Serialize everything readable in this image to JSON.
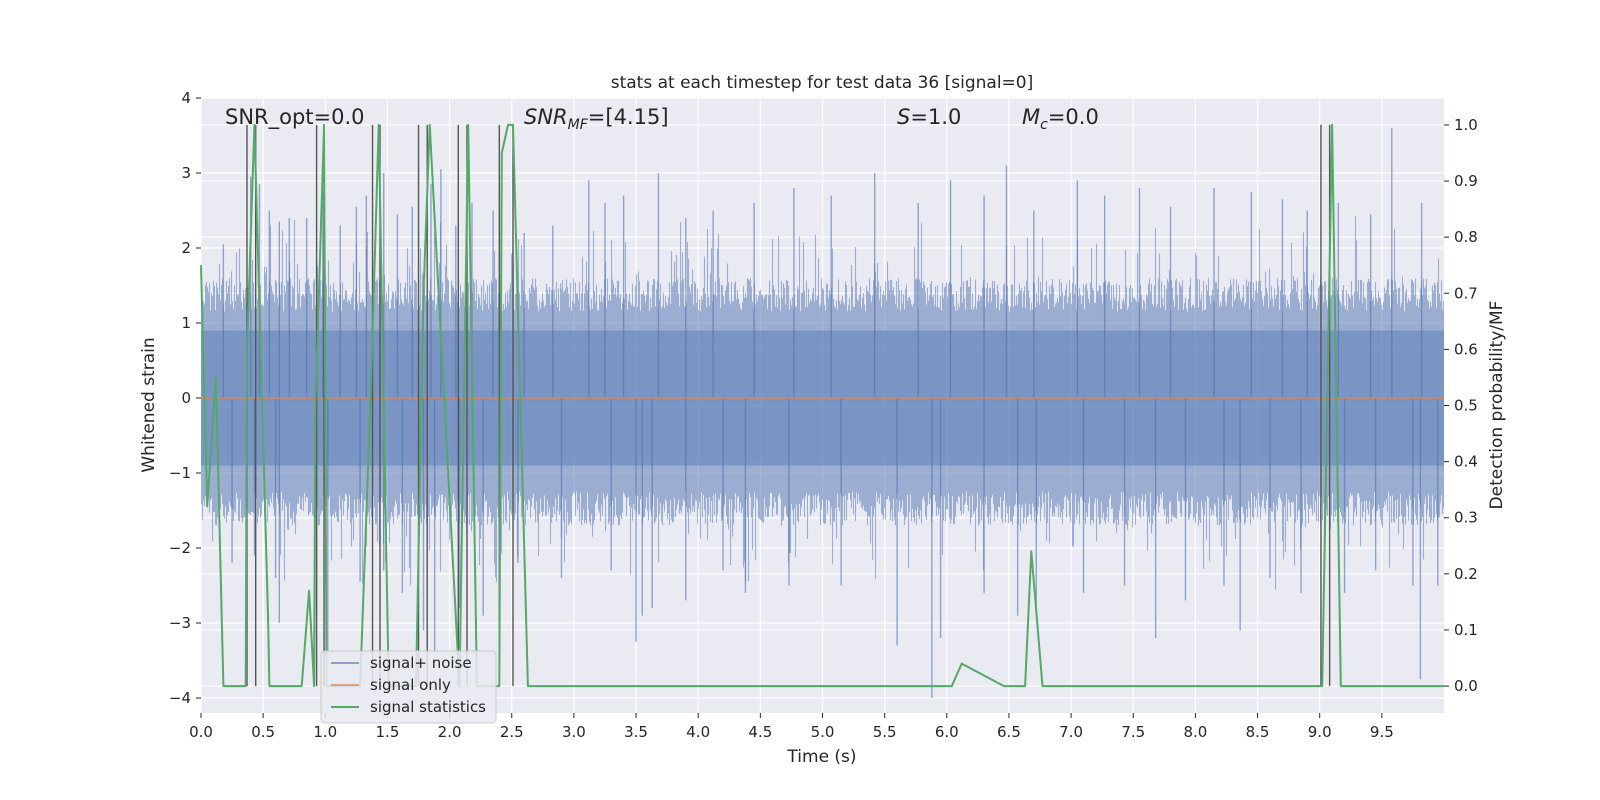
{
  "chart_data": {
    "type": "line",
    "title": "stats at each timestep for test data 36 [signal=0]",
    "xlabel": "Time (s)",
    "ylabel_left": "Whitened strain",
    "ylabel_right": "Detection probability/MF",
    "xlim": [
      0,
      10
    ],
    "ylim_left": [
      -4.2,
      4
    ],
    "ylim_right": [
      -0.048,
      1.048
    ],
    "x_ticks": [
      0.0,
      0.5,
      1.0,
      1.5,
      2.0,
      2.5,
      3.0,
      3.5,
      4.0,
      4.5,
      5.0,
      5.5,
      6.0,
      6.5,
      7.0,
      7.5,
      8.0,
      8.5,
      9.0,
      9.5
    ],
    "x_tick_labels": [
      "0.0",
      "0.5",
      "1.0",
      "1.5",
      "2.0",
      "2.5",
      "3.0",
      "3.5",
      "4.0",
      "4.5",
      "5.0",
      "5.5",
      "6.0",
      "6.5",
      "7.0",
      "7.5",
      "8.0",
      "8.5",
      "9.0",
      "9.5"
    ],
    "y_ticks_left": [
      4,
      3,
      2,
      1,
      0,
      -1,
      -2,
      -3,
      -4
    ],
    "y_tick_labels_left": [
      "4",
      "3",
      "2",
      "1",
      "0",
      "−1",
      "−2",
      "−3",
      "−4"
    ],
    "y_ticks_right": [
      1.0,
      0.9,
      0.8,
      0.7,
      0.6,
      0.5,
      0.4,
      0.3,
      0.2,
      0.1,
      0.0
    ],
    "y_tick_labels_right": [
      "1.0",
      "0.9",
      "0.8",
      "0.7",
      "0.6",
      "0.5",
      "0.4",
      "0.3",
      "0.2",
      "0.1",
      "0.0"
    ],
    "grid": true,
    "legend_position": "lower-left",
    "colors": {
      "plot_background": "#eaeaf2",
      "grid": "#ffffff",
      "signal_noise": "#4c72b0",
      "signal_only": "#dd8452",
      "signal_statistics": "#55a868",
      "mf_markers": "#555555"
    },
    "series": [
      {
        "name": "signal+ noise",
        "axis": "left",
        "style": "noise-band",
        "typical_range": [
          -1.7,
          1.6
        ],
        "peak_range": [
          -4.0,
          3.6
        ],
        "spikes": [
          {
            "x": 0.18,
            "y": 2.05
          },
          {
            "x": 0.4,
            "y": 2.95
          },
          {
            "x": 0.47,
            "y": 2.85
          },
          {
            "x": 0.55,
            "y": 2.5
          },
          {
            "x": 0.63,
            "y": 2.35
          },
          {
            "x": 0.71,
            "y": 2.4
          },
          {
            "x": 0.85,
            "y": 2.4
          },
          {
            "x": 0.98,
            "y": 2.75
          },
          {
            "x": 1.12,
            "y": 2.3
          },
          {
            "x": 1.25,
            "y": 2.55
          },
          {
            "x": 1.33,
            "y": 2.7
          },
          {
            "x": 1.47,
            "y": 3.0
          },
          {
            "x": 1.58,
            "y": 2.45
          },
          {
            "x": 1.7,
            "y": 2.55
          },
          {
            "x": 1.85,
            "y": 2.85
          },
          {
            "x": 1.93,
            "y": 3.05
          },
          {
            "x": 2.05,
            "y": 2.3
          },
          {
            "x": 2.18,
            "y": 2.6
          },
          {
            "x": 2.35,
            "y": 2.5
          },
          {
            "x": 2.6,
            "y": 2.2
          },
          {
            "x": 2.83,
            "y": 2.3
          },
          {
            "x": 3.12,
            "y": 2.9
          },
          {
            "x": 3.25,
            "y": 2.6
          },
          {
            "x": 3.4,
            "y": 2.7
          },
          {
            "x": 3.68,
            "y": 3.0
          },
          {
            "x": 3.9,
            "y": 2.4
          },
          {
            "x": 4.12,
            "y": 2.5
          },
          {
            "x": 4.45,
            "y": 2.6
          },
          {
            "x": 4.77,
            "y": 2.8
          },
          {
            "x": 5.07,
            "y": 2.7
          },
          {
            "x": 5.42,
            "y": 3.0
          },
          {
            "x": 5.77,
            "y": 2.6
          },
          {
            "x": 6.03,
            "y": 2.9
          },
          {
            "x": 6.3,
            "y": 2.7
          },
          {
            "x": 6.48,
            "y": 3.1
          },
          {
            "x": 6.7,
            "y": 2.5
          },
          {
            "x": 7.05,
            "y": 2.9
          },
          {
            "x": 7.27,
            "y": 2.7
          },
          {
            "x": 7.55,
            "y": 2.8
          },
          {
            "x": 7.8,
            "y": 2.55
          },
          {
            "x": 8.15,
            "y": 2.8
          },
          {
            "x": 8.45,
            "y": 2.75
          },
          {
            "x": 8.7,
            "y": 2.65
          },
          {
            "x": 8.9,
            "y": 2.5
          },
          {
            "x": 9.15,
            "y": 2.6
          },
          {
            "x": 9.41,
            "y": 2.45
          },
          {
            "x": 9.58,
            "y": 3.6
          },
          {
            "x": 9.82,
            "y": 2.6
          }
        ],
        "dips": [
          {
            "x": 0.25,
            "y": -2.2
          },
          {
            "x": 0.43,
            "y": -2.1
          },
          {
            "x": 0.6,
            "y": -2.4
          },
          {
            "x": 0.63,
            "y": -3.0
          },
          {
            "x": 0.93,
            "y": -2.9
          },
          {
            "x": 1.02,
            "y": -3.4
          },
          {
            "x": 1.28,
            "y": -2.45
          },
          {
            "x": 1.47,
            "y": -2.3
          },
          {
            "x": 1.62,
            "y": -2.6
          },
          {
            "x": 1.79,
            "y": -3.1
          },
          {
            "x": 1.88,
            "y": -3.4
          },
          {
            "x": 2.08,
            "y": -2.8
          },
          {
            "x": 2.27,
            "y": -2.9
          },
          {
            "x": 2.55,
            "y": -2.2
          },
          {
            "x": 2.9,
            "y": -2.4
          },
          {
            "x": 3.3,
            "y": -2.3
          },
          {
            "x": 3.5,
            "y": -3.25
          },
          {
            "x": 3.55,
            "y": -2.9
          },
          {
            "x": 3.63,
            "y": -2.8
          },
          {
            "x": 3.9,
            "y": -2.7
          },
          {
            "x": 4.2,
            "y": -2.3
          },
          {
            "x": 4.38,
            "y": -2.6
          },
          {
            "x": 4.73,
            "y": -2.5
          },
          {
            "x": 5.15,
            "y": -2.5
          },
          {
            "x": 5.6,
            "y": -3.3
          },
          {
            "x": 5.88,
            "y": -4.0
          },
          {
            "x": 5.95,
            "y": -3.2
          },
          {
            "x": 6.3,
            "y": -2.6
          },
          {
            "x": 6.57,
            "y": -2.9
          },
          {
            "x": 6.72,
            "y": -2.75
          },
          {
            "x": 7.1,
            "y": -2.6
          },
          {
            "x": 7.43,
            "y": -2.5
          },
          {
            "x": 7.68,
            "y": -3.2
          },
          {
            "x": 7.92,
            "y": -2.7
          },
          {
            "x": 8.23,
            "y": -2.5
          },
          {
            "x": 8.36,
            "y": -3.1
          },
          {
            "x": 8.6,
            "y": -2.4
          },
          {
            "x": 8.85,
            "y": -2.6
          },
          {
            "x": 9.2,
            "y": -2.6
          },
          {
            "x": 9.45,
            "y": -2.3
          },
          {
            "x": 9.75,
            "y": -2.5
          },
          {
            "x": 9.81,
            "y": -3.75
          },
          {
            "x": 9.95,
            "y": -2.5
          }
        ]
      },
      {
        "name": "signal only",
        "axis": "left",
        "x": [
          0,
          10
        ],
        "y": [
          0,
          0
        ]
      },
      {
        "name": "signal statistics",
        "axis": "right",
        "x": [
          0.0,
          0.05,
          0.12,
          0.18,
          0.36,
          0.37,
          0.43,
          0.54,
          0.55,
          0.81,
          0.87,
          0.91,
          0.92,
          0.99,
          1.01,
          1.08,
          1.28,
          1.37,
          1.43,
          1.51,
          1.73,
          1.79,
          1.84,
          2.08,
          2.15,
          2.22,
          2.4,
          2.42,
          2.47,
          2.51,
          2.63,
          5.88,
          6.04,
          6.12,
          6.46,
          6.56,
          6.63,
          6.68,
          6.77,
          9.02,
          9.1,
          9.17,
          10.0
        ],
        "y": [
          0.75,
          0.32,
          0.55,
          0.0,
          0.0,
          0.6,
          1.0,
          0.12,
          0.0,
          0.0,
          0.17,
          0.0,
          0.5,
          1.0,
          0.0,
          0.0,
          0.0,
          0.55,
          1.0,
          0.0,
          0.0,
          0.7,
          1.0,
          0.0,
          1.0,
          0.0,
          0.0,
          0.95,
          1.0,
          1.0,
          0.0,
          0.0,
          0.0,
          0.04,
          0.0,
          0.0,
          0.0,
          0.24,
          0.0,
          0.0,
          1.0,
          0.0,
          0.0
        ]
      }
    ],
    "mf_trigger_times": [
      0.37,
      0.44,
      0.93,
      0.99,
      1.38,
      1.44,
      1.75,
      1.82,
      2.07,
      2.14,
      2.4,
      2.51,
      9.01,
      9.08
    ],
    "annotations": [
      {
        "id": "snr_opt",
        "text": "SNR_opt=0.0"
      },
      {
        "id": "snr_mf",
        "text": "SNR",
        "sub": "MF",
        "rest": "=[4.15]"
      },
      {
        "id": "s",
        "text": "S",
        "rest": "=1.0"
      },
      {
        "id": "mc",
        "text": "M",
        "sub": "c",
        "rest": "=0.0"
      }
    ]
  }
}
